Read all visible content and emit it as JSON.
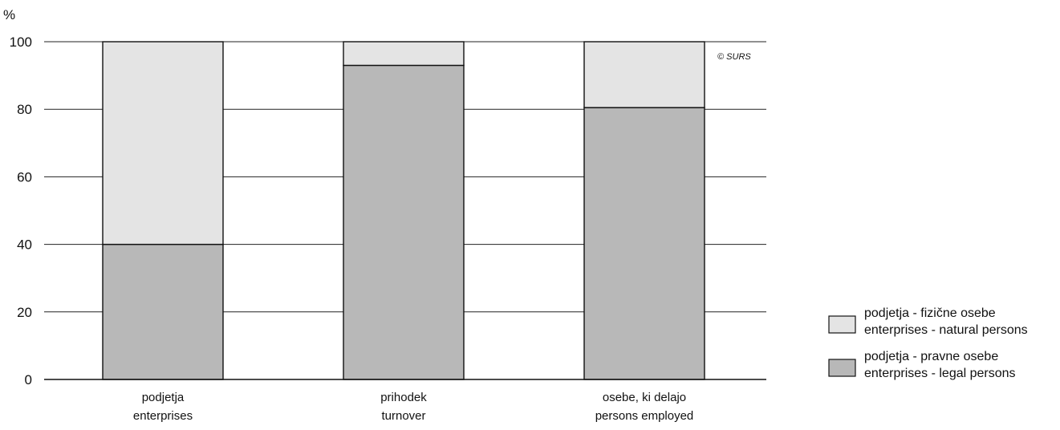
{
  "chart_data": {
    "type": "bar",
    "stacked": true,
    "unit_label": "%",
    "credit": "© SURS",
    "ylim": [
      0,
      100
    ],
    "yticks": [
      0,
      20,
      40,
      60,
      80,
      100
    ],
    "grid": true,
    "legend_position": "right",
    "categories": [
      [
        "podjetja",
        "enterprises"
      ],
      [
        "prihodek",
        "turnover"
      ],
      [
        "osebe, ki delajo",
        "persons employed"
      ]
    ],
    "series": [
      {
        "name": [
          "podjetja - pravne osebe",
          "enterprises - legal persons"
        ],
        "color": "#b8b8b8",
        "values": [
          40,
          93,
          80.5
        ]
      },
      {
        "name": [
          "podjetja - fizične osebe",
          "enterprises - natural persons"
        ],
        "color": "#e4e4e4",
        "values": [
          60,
          7,
          19.5
        ]
      }
    ],
    "legend_order": [
      1,
      0
    ]
  }
}
